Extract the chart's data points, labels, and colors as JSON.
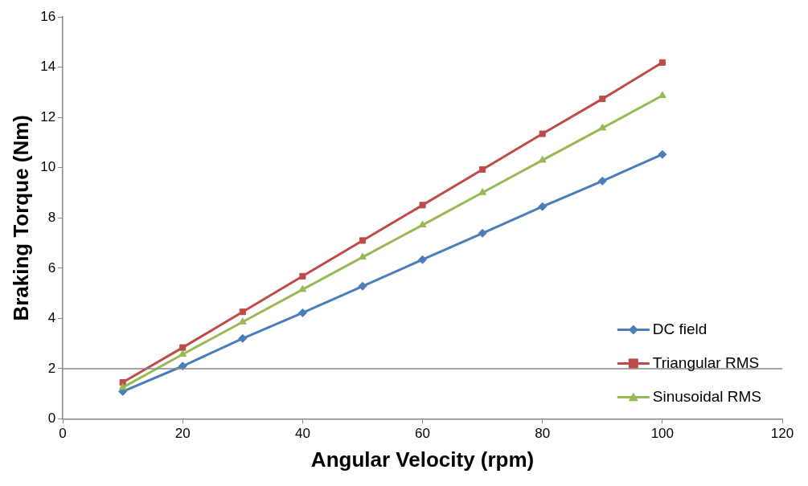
{
  "chart_data": {
    "type": "line",
    "xlabel": "Angular Velocity (rpm)",
    "ylabel": "Braking Torque (Nm)",
    "x": [
      10,
      20,
      30,
      40,
      50,
      60,
      70,
      80,
      90,
      100
    ],
    "series": [
      {
        "name": "DC field",
        "color": "#4a7ebb",
        "marker": "diamond",
        "values": [
          1.09,
          2.1,
          3.2,
          4.22,
          5.28,
          6.34,
          7.39,
          8.45,
          9.47,
          10.53
        ]
      },
      {
        "name": "Triangular RMS",
        "color": "#be4b48",
        "marker": "square",
        "values": [
          1.45,
          2.84,
          4.26,
          5.68,
          7.1,
          8.51,
          9.93,
          11.35,
          12.74,
          14.19
        ]
      },
      {
        "name": "Sinusoidal RMS",
        "color": "#98b954",
        "marker": "triangle",
        "values": [
          1.25,
          2.57,
          3.86,
          5.15,
          6.44,
          7.72,
          9.01,
          10.3,
          11.58,
          12.87
        ]
      }
    ],
    "xlim": [
      0,
      120
    ],
    "xticks": [
      0,
      20,
      40,
      60,
      80,
      100,
      120
    ],
    "ylim": [
      0,
      16
    ],
    "yticks": [
      0,
      2,
      4,
      6,
      8,
      10,
      12,
      14,
      16
    ],
    "ref_lines": [
      {
        "axis": "y",
        "value": 2,
        "color": "#868686"
      }
    ],
    "grid": false,
    "legend": "bottom right",
    "line_style": "solid"
  }
}
